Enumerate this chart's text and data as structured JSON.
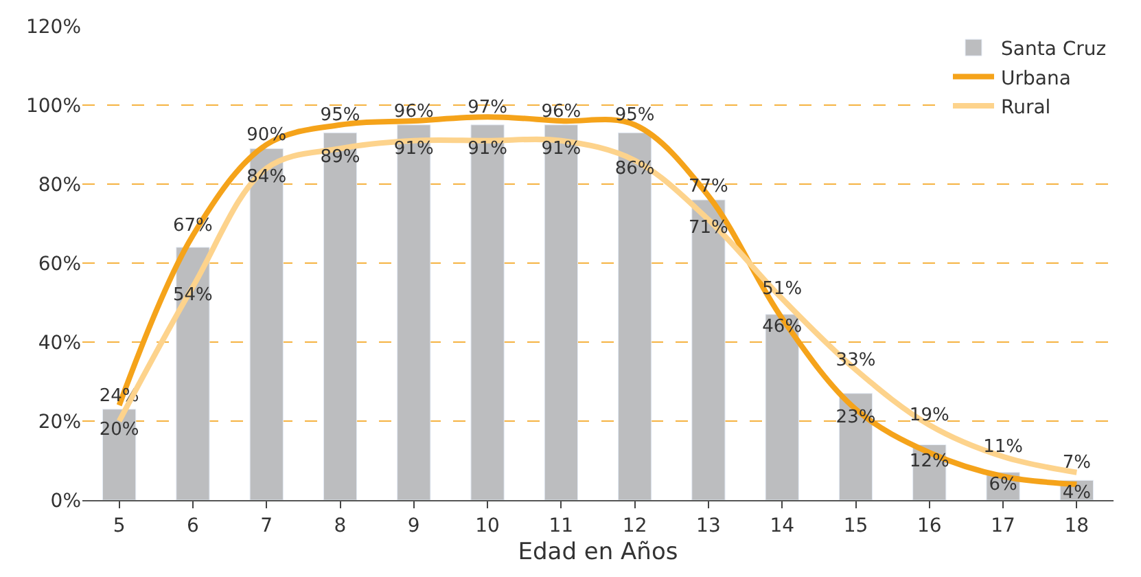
{
  "chart_data": {
    "type": "bar",
    "xlabel": "Edad en Años",
    "categories": [
      "5",
      "6",
      "7",
      "8",
      "9",
      "10",
      "11",
      "12",
      "13",
      "14",
      "15",
      "16",
      "17",
      "18"
    ],
    "series": [
      {
        "name": "Santa Cruz",
        "color": "#bcbdbf",
        "values": [
          23,
          64,
          89,
          93,
          95,
          95,
          95,
          93,
          76,
          47,
          27,
          14,
          7,
          5
        ]
      },
      {
        "name": "Urbana",
        "type": "line",
        "color": "#f5a31a",
        "values": [
          24,
          67,
          90,
          95,
          96,
          97,
          96,
          95,
          77,
          46,
          23,
          12,
          6,
          4
        ],
        "value_labels": [
          "24%",
          "67%",
          "90%",
          "95%",
          "96%",
          "97%",
          "96%",
          "95%",
          "77%",
          "46%",
          "23%",
          "12%",
          "6%",
          "4%"
        ]
      },
      {
        "name": "Rural",
        "type": "line",
        "color": "#fdd38c",
        "values": [
          20,
          54,
          84,
          89,
          91,
          91,
          91,
          86,
          71,
          51,
          33,
          19,
          11,
          7
        ],
        "value_labels": [
          "20%",
          "54%",
          "84%",
          "89%",
          "91%",
          "91%",
          "91%",
          "86%",
          "71%",
          "51%",
          "33%",
          "19%",
          "11%",
          "7%"
        ]
      }
    ],
    "ylim": [
      0,
      120
    ],
    "yticks": [
      {
        "value": 0,
        "label": "0%"
      },
      {
        "value": 20,
        "label": "20%"
      },
      {
        "value": 40,
        "label": "40%"
      },
      {
        "value": 60,
        "label": "60%"
      },
      {
        "value": 80,
        "label": "80%"
      },
      {
        "value": 100,
        "label": "100%"
      },
      {
        "value": 120,
        "label": "120%"
      }
    ],
    "grid": "y",
    "legend": "top right"
  }
}
